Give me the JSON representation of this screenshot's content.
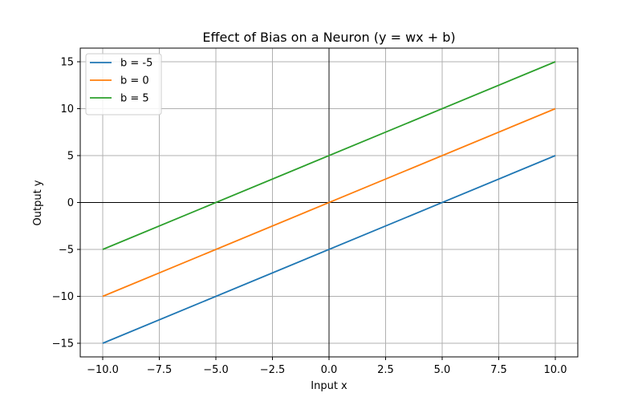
{
  "chart_data": {
    "type": "line",
    "title": "Effect of Bias on a Neuron (y = wx + b)",
    "xlabel": "Input x",
    "ylabel": "Output y",
    "xlim": [
      -10.0,
      10.0
    ],
    "ylim": [
      -15,
      15
    ],
    "x_ticks": [
      "−10.0",
      "−7.5",
      "−5.0",
      "−2.5",
      "0.0",
      "2.5",
      "5.0",
      "7.5",
      "10.0"
    ],
    "y_ticks": [
      "−15",
      "−10",
      "−5",
      "0",
      "5",
      "10",
      "15"
    ],
    "x_tick_values": [
      -10,
      -7.5,
      -5,
      -2.5,
      0,
      2.5,
      5,
      7.5,
      10
    ],
    "y_tick_values": [
      -15,
      -10,
      -5,
      0,
      5,
      10,
      15
    ],
    "grid": true,
    "reference_lines": {
      "x": 0,
      "y": 0
    },
    "legend_position": "top-left",
    "series": [
      {
        "name": "b = -5",
        "color": "#1f77b4",
        "x": [
          -10,
          10
        ],
        "y": [
          -15,
          5
        ]
      },
      {
        "name": "b = 0",
        "color": "#ff7f0e",
        "x": [
          -10,
          10
        ],
        "y": [
          -10,
          10
        ]
      },
      {
        "name": "b = 5",
        "color": "#2ca02c",
        "x": [
          -10,
          10
        ],
        "y": [
          -5,
          15
        ]
      }
    ]
  }
}
